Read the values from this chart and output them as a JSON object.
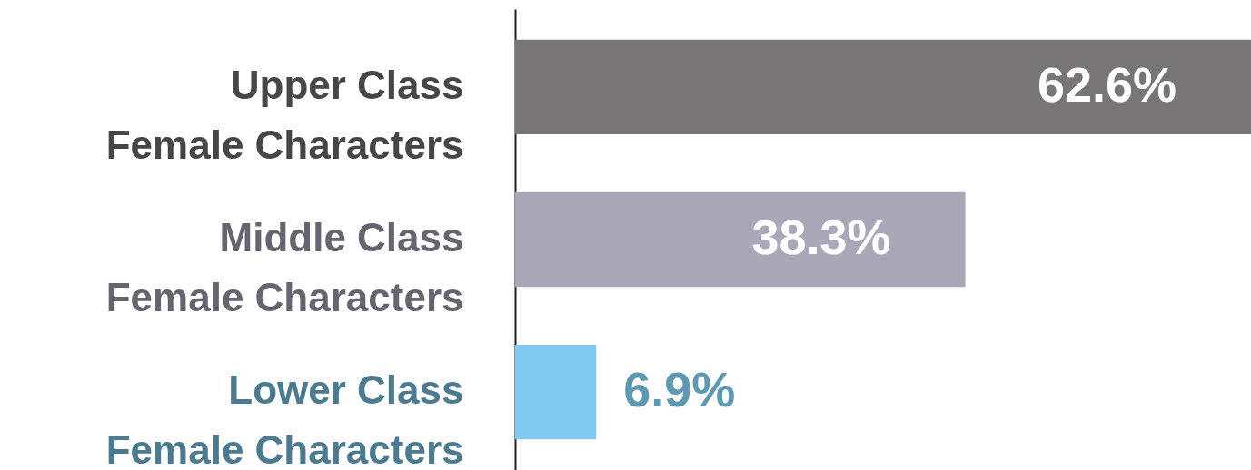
{
  "chart_data": {
    "type": "bar",
    "orientation": "horizontal",
    "categories": [
      "Upper Class\nFemale Characters",
      "Middle Class\nFemale Characters",
      "Lower Class\nFemale Characters"
    ],
    "values": [
      62.6,
      38.3,
      6.9
    ],
    "colors": [
      "#777576",
      "#aaa7b8",
      "#7ecbef"
    ],
    "value_labels": [
      "62.6%",
      "38.3%",
      "6.9%"
    ]
  }
}
